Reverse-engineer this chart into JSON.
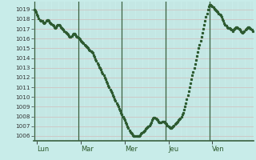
{
  "bg_color": "#c8ece9",
  "grid_color_h": "#d4b8b8",
  "grid_color_v": "#b8d8d4",
  "day_line_color": "#3a6040",
  "line_color": "#2d5a30",
  "marker_color": "#2d5a30",
  "ylim": [
    1005.5,
    1019.8
  ],
  "yticks": [
    1006,
    1007,
    1008,
    1009,
    1010,
    1011,
    1012,
    1013,
    1014,
    1015,
    1016,
    1017,
    1018,
    1019
  ],
  "xlabel_days": [
    "Lun",
    "Mar",
    "Mer",
    "Jeu",
    "Ven"
  ],
  "day_positions": [
    0,
    48,
    96,
    144,
    192
  ],
  "n_points": 240,
  "y_values": [
    1019.0,
    1018.9,
    1018.7,
    1018.5,
    1018.3,
    1018.1,
    1017.9,
    1017.8,
    1017.8,
    1017.8,
    1017.7,
    1017.6,
    1017.7,
    1017.8,
    1017.9,
    1017.9,
    1017.8,
    1017.7,
    1017.6,
    1017.5,
    1017.4,
    1017.3,
    1017.2,
    1017.1,
    1017.2,
    1017.3,
    1017.4,
    1017.4,
    1017.3,
    1017.2,
    1017.1,
    1017.0,
    1016.9,
    1016.8,
    1016.7,
    1016.6,
    1016.5,
    1016.4,
    1016.3,
    1016.2,
    1016.2,
    1016.3,
    1016.4,
    1016.5,
    1016.5,
    1016.4,
    1016.3,
    1016.2,
    1016.1,
    1016.0,
    1015.9,
    1015.8,
    1015.7,
    1015.6,
    1015.5,
    1015.4,
    1015.3,
    1015.2,
    1015.1,
    1015.0,
    1014.9,
    1014.8,
    1014.7,
    1014.6,
    1014.5,
    1014.3,
    1014.1,
    1013.9,
    1013.7,
    1013.5,
    1013.3,
    1013.1,
    1013.0,
    1012.8,
    1012.6,
    1012.4,
    1012.2,
    1012.0,
    1011.8,
    1011.6,
    1011.4,
    1011.2,
    1011.0,
    1010.8,
    1010.6,
    1010.4,
    1010.2,
    1010.0,
    1009.8,
    1009.6,
    1009.4,
    1009.2,
    1009.0,
    1008.8,
    1008.6,
    1008.4,
    1008.2,
    1008.0,
    1007.8,
    1007.6,
    1007.4,
    1007.2,
    1007.0,
    1006.8,
    1006.6,
    1006.4,
    1006.3,
    1006.2,
    1006.1,
    1006.0,
    1006.0,
    1006.0,
    1006.0,
    1006.0,
    1006.0,
    1006.0,
    1006.1,
    1006.2,
    1006.3,
    1006.4,
    1006.5,
    1006.6,
    1006.7,
    1006.8,
    1006.9,
    1007.0,
    1007.1,
    1007.2,
    1007.4,
    1007.6,
    1007.8,
    1007.9,
    1007.9,
    1007.8,
    1007.7,
    1007.6,
    1007.5,
    1007.4,
    1007.4,
    1007.4,
    1007.5,
    1007.5,
    1007.5,
    1007.4,
    1007.3,
    1007.2,
    1007.1,
    1007.0,
    1006.9,
    1006.8,
    1006.8,
    1006.9,
    1007.0,
    1007.1,
    1007.2,
    1007.3,
    1007.4,
    1007.5,
    1007.6,
    1007.7,
    1007.8,
    1008.0,
    1008.2,
    1008.4,
    1008.7,
    1009.0,
    1009.4,
    1009.8,
    1010.2,
    1010.6,
    1011.0,
    1011.4,
    1011.8,
    1012.2,
    1012.6,
    1013.0,
    1013.4,
    1013.8,
    1014.2,
    1014.6,
    1015.0,
    1015.4,
    1015.8,
    1016.2,
    1016.6,
    1017.0,
    1017.4,
    1017.8,
    1018.2,
    1018.6,
    1019.0,
    1019.3,
    1019.5,
    1019.5,
    1019.4,
    1019.3,
    1019.2,
    1019.1,
    1019.0,
    1018.9,
    1018.8,
    1018.7,
    1018.6,
    1018.5,
    1018.4,
    1018.2,
    1018.0,
    1017.8,
    1017.6,
    1017.4,
    1017.3,
    1017.2,
    1017.1,
    1017.1,
    1017.1,
    1017.0,
    1016.9,
    1016.8,
    1016.9,
    1017.0,
    1017.1,
    1017.2,
    1017.2,
    1017.1,
    1017.0,
    1016.9,
    1016.8,
    1016.7,
    1016.6,
    1016.7,
    1016.8,
    1016.9,
    1017.0,
    1017.1,
    1017.2,
    1017.2,
    1017.1,
    1017.0,
    1016.9,
    1016.8
  ]
}
